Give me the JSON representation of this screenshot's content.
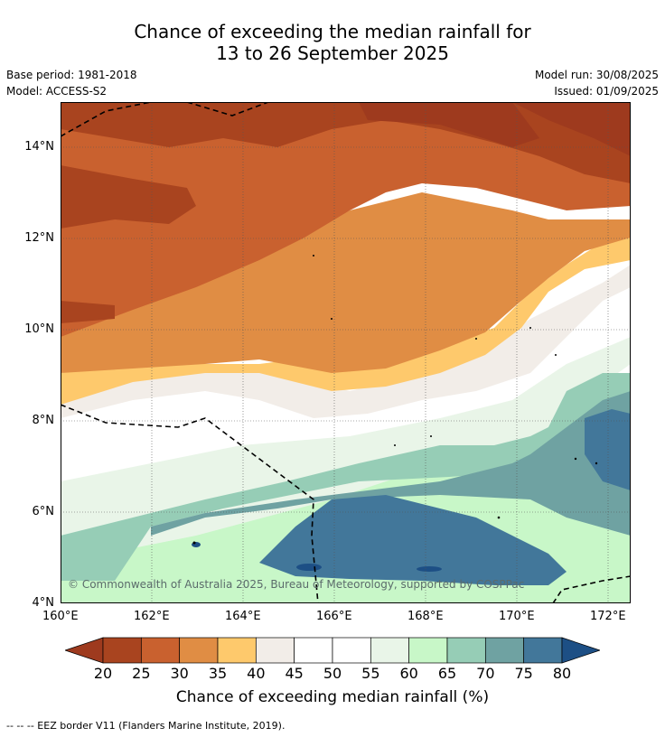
{
  "title": {
    "line1": "Chance of exceeding the median rainfall for",
    "line2": "13 to 26 September 2025"
  },
  "meta": {
    "base_period": "Base period: 1981-2018",
    "model": "Model: ACCESS-S2",
    "model_run": "Model run: 30/08/2025",
    "issued": "Issued: 01/09/2025"
  },
  "axes": {
    "lat_labels": [
      "14°N",
      "12°N",
      "10°N",
      "8°N",
      "6°N",
      "4°N"
    ],
    "lon_labels": [
      "160°E",
      "162°E",
      "164°E",
      "166°E",
      "168°E",
      "170°E",
      "172°E"
    ]
  },
  "colorbar": {
    "labels": [
      "20",
      "25",
      "30",
      "35",
      "40",
      "45",
      "50",
      "55",
      "60",
      "65",
      "70",
      "75",
      "80"
    ],
    "low_color": "#9e3a1e",
    "high_color": "#1d4f85",
    "colors": [
      "#a9441f",
      "#c9612f",
      "#e08d44",
      "#fec96c",
      "#f2ede8",
      "#ffffff",
      "#ffffff",
      "#e9f5e8",
      "#c8f7c8",
      "#96cdb6",
      "#6fa2a2",
      "#42779a"
    ],
    "title": "Chance of exceeding median rainfall (%)"
  },
  "copyright": "© Commonwealth of Australia 2025, Bureau of Meteorology, supported by COSPPac",
  "footer": "-- -- -- EEZ border V11 (Flanders Marine Institute, 2019)."
}
